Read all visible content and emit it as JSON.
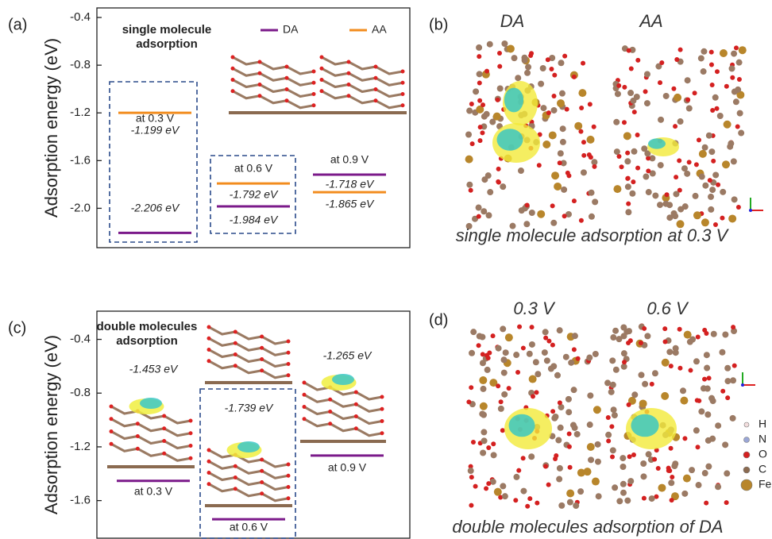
{
  "chart_data": [
    {
      "type": "level",
      "panel_label": "(a)",
      "ylabel": "Adsorption energy (eV)",
      "annotation": [
        "single molecule",
        "adsorption"
      ],
      "categories": [
        "at 0.3 V",
        "at 0.6 V",
        "at 0.9 V"
      ],
      "series": [
        {
          "name": "DA",
          "color": "#7b1a8a",
          "values": [
            -2.206,
            -1.984,
            -1.718
          ],
          "value_labels": [
            "-2.206 eV",
            "-1.984 eV",
            "-1.718 eV"
          ]
        },
        {
          "name": "AA",
          "color": "#f28c1e",
          "values": [
            -1.199,
            -1.792,
            -1.865
          ],
          "value_labels": [
            "-1.199 eV",
            "-1.792 eV",
            "-1.865 eV"
          ]
        }
      ],
      "ylim": [
        -2.33,
        -0.32
      ],
      "yticks": [
        -0.4,
        -0.8,
        -1.2,
        -1.6,
        {
          "value": -2.0,
          "label": "-2.0"
        }
      ]
    },
    {
      "type": "level",
      "panel_label": "(c)",
      "ylabel": "Adsorption energy (eV)",
      "annotation": [
        "double molecules",
        "adsorption"
      ],
      "categories": [
        "at 0.3 V",
        "at 0.6 V",
        "at 0.9 V"
      ],
      "series": [
        {
          "color": "#7b1a8a",
          "values": [
            -1.453,
            -1.739,
            -1.265
          ],
          "value_labels": [
            "-1.453 eV",
            "-1.739 eV",
            "-1.265 eV"
          ]
        }
      ],
      "ylim": [
        -1.88,
        -0.19
      ],
      "yticks": [
        -0.4,
        -0.8,
        -1.2,
        -1.6
      ]
    }
  ],
  "images": [
    {
      "panel_label": "(b)",
      "titles": [
        "DA",
        "AA"
      ],
      "caption": "single molecule adsorption at 0.3 V"
    },
    {
      "panel_label": "(d)",
      "titles": [
        "0.3 V",
        "0.6 V"
      ],
      "caption": "double molecules adsorption of DA",
      "legend": [
        "H",
        "N",
        "O",
        "C",
        "Fe"
      ]
    }
  ]
}
